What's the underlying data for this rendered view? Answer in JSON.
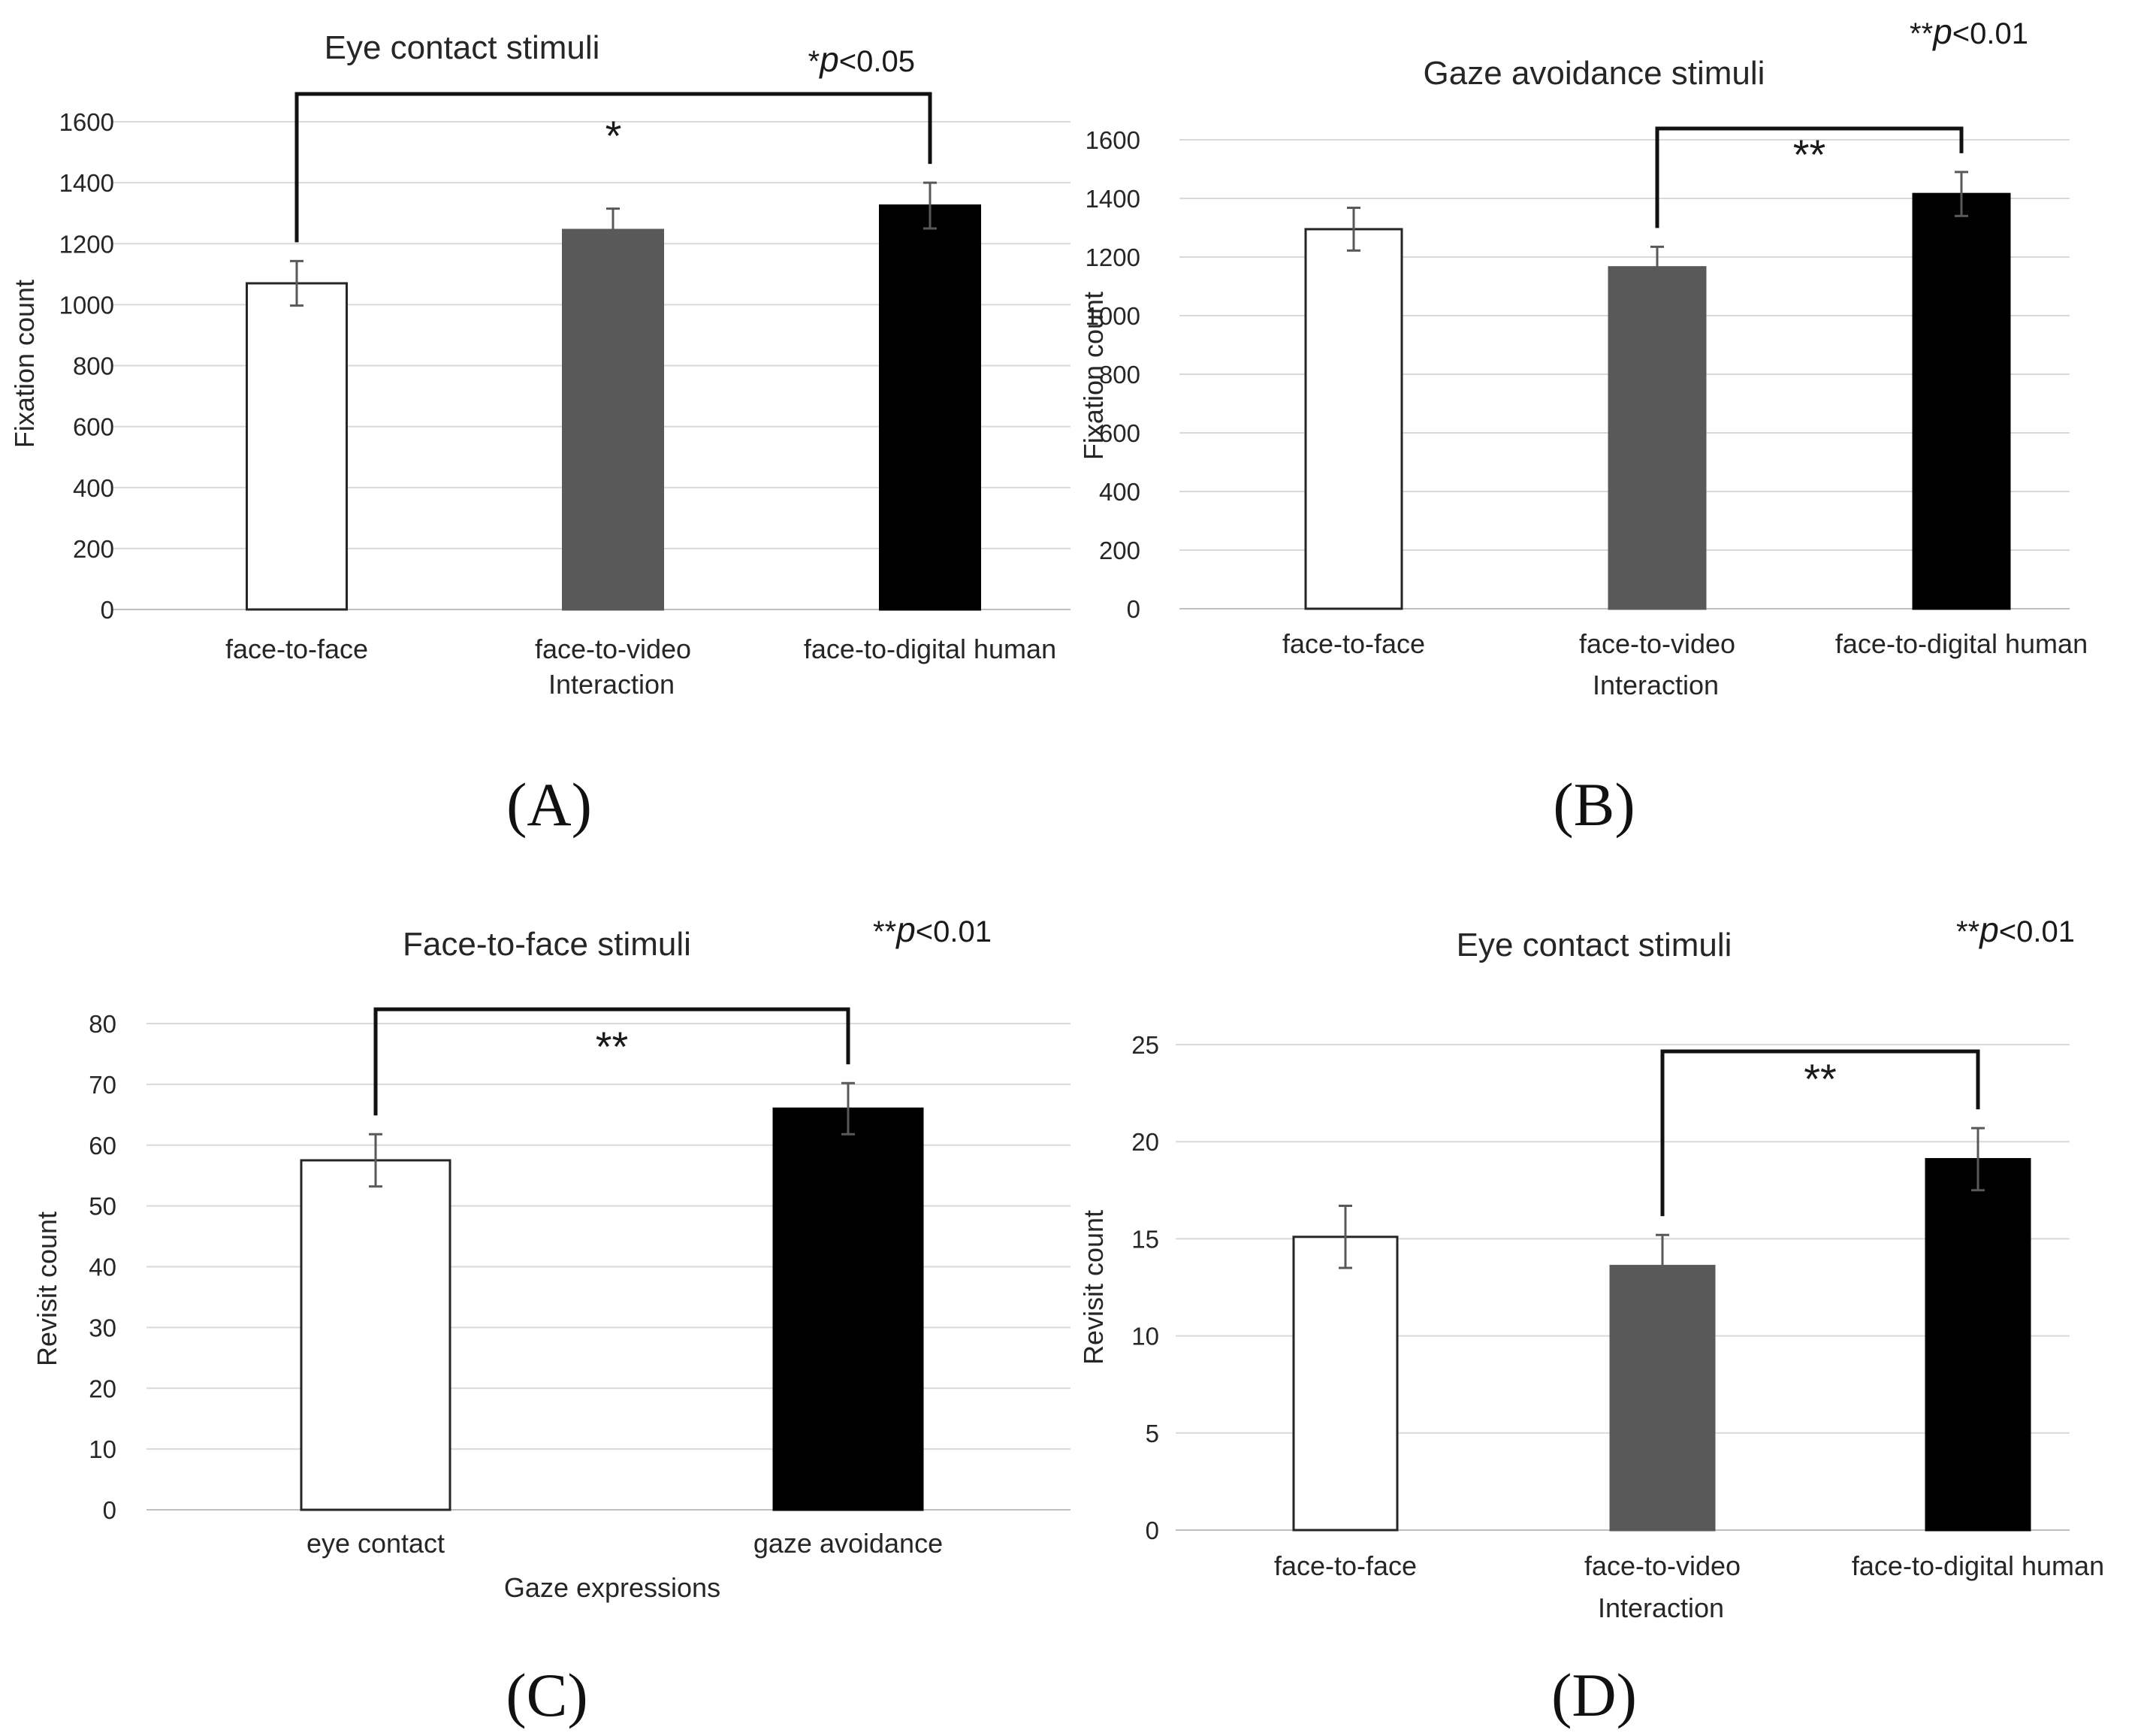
{
  "chart_data": [
    {
      "type": "bar",
      "panel_label": "(A)",
      "title": "Eye contact stimuli",
      "significance_note": {
        "stars": "*",
        "p_symbol": "p",
        "rest": "<0.05"
      },
      "xlabel": "Interaction",
      "ylabel": "Fixation count",
      "ylim": [
        0,
        1600
      ],
      "yticks": [
        0,
        200,
        400,
        600,
        800,
        1000,
        1200,
        1400,
        1600
      ],
      "categories": [
        "face-to-face",
        "face-to-video",
        "face-to-digital human"
      ],
      "values": [
        1070,
        1245,
        1325
      ],
      "errors": [
        73,
        70,
        75
      ],
      "bar_colors": [
        "#ffffff",
        "#595959",
        "#000000"
      ],
      "bracket": {
        "from": 0,
        "to": 2,
        "label": "*"
      }
    },
    {
      "type": "bar",
      "panel_label": "(B)",
      "title": "Gaze avoidance stimuli",
      "significance_note": {
        "stars": "**",
        "p_symbol": "p",
        "rest": "<0.01"
      },
      "xlabel": "Interaction",
      "ylabel": "Fixation count",
      "ylim": [
        0,
        1600
      ],
      "yticks": [
        0,
        200,
        400,
        600,
        800,
        1000,
        1200,
        1400,
        1600
      ],
      "categories": [
        "face-to-face",
        "face-to-video",
        "face-to-digital human"
      ],
      "values": [
        1295,
        1165,
        1415
      ],
      "errors": [
        73,
        70,
        75
      ],
      "bar_colors": [
        "#ffffff",
        "#595959",
        "#000000"
      ],
      "bracket": {
        "from": 1,
        "to": 2,
        "label": "**"
      }
    },
    {
      "type": "bar",
      "panel_label": "(C)",
      "title": "Face-to-face stimuli",
      "significance_note": {
        "stars": "**",
        "p_symbol": "p",
        "rest": "<0.01"
      },
      "xlabel": "Gaze expressions",
      "ylabel": "Revisit count",
      "ylim": [
        0,
        80
      ],
      "yticks": [
        0,
        10,
        20,
        30,
        40,
        50,
        60,
        70,
        80
      ],
      "categories": [
        "eye contact",
        "gaze avoidance"
      ],
      "values": [
        57.5,
        66
      ],
      "errors": [
        4.3,
        4.2
      ],
      "bar_colors": [
        "#ffffff",
        "#000000"
      ],
      "bracket": {
        "from": 0,
        "to": 1,
        "label": "**"
      }
    },
    {
      "type": "bar",
      "panel_label": "(D)",
      "title": "Eye contact stimuli",
      "significance_note": {
        "stars": "**",
        "p_symbol": "p",
        "rest": "<0.01"
      },
      "xlabel": "Interaction",
      "ylabel": "Revisit count",
      "ylim": [
        0,
        25
      ],
      "yticks": [
        0,
        5,
        10,
        15,
        20,
        25
      ],
      "categories": [
        "face-to-face",
        "face-to-video",
        "face-to-digital human"
      ],
      "values": [
        15.1,
        13.6,
        19.1
      ],
      "errors": [
        1.6,
        1.6,
        1.6
      ],
      "bar_colors": [
        "#ffffff",
        "#595959",
        "#000000"
      ],
      "bracket": {
        "from": 1,
        "to": 2,
        "label": "**"
      }
    }
  ]
}
